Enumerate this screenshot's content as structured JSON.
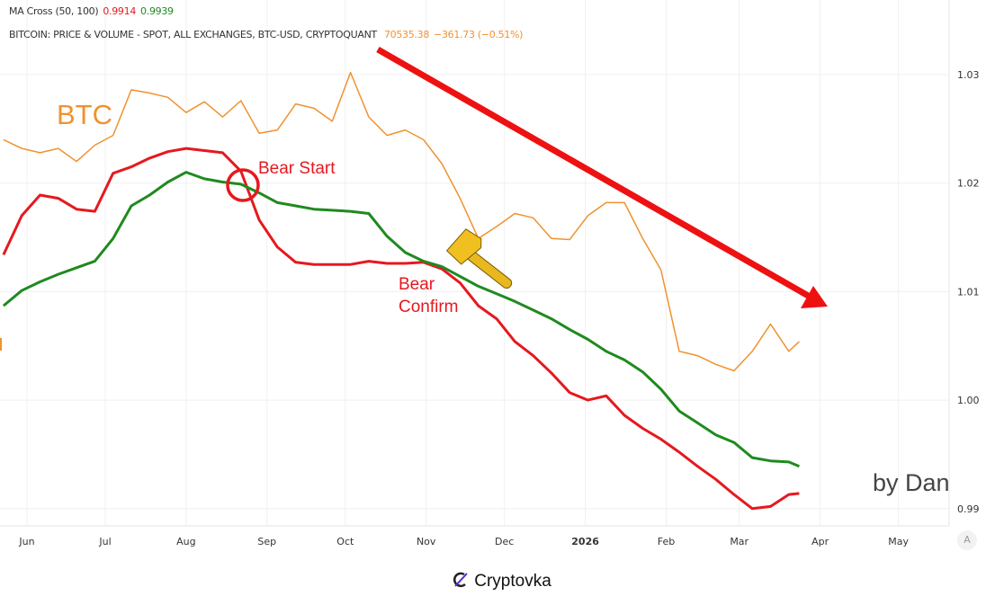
{
  "legend": {
    "indicator_label": "MA Cross (50, 100)",
    "ma_fast_value": "0.9914",
    "ma_slow_value": "0.9939",
    "symbol_label": "BITCOIN: PRICE & VOLUME - SPOT, ALL EXCHANGES, BTC-USD, CRYPTOQUANT",
    "price": "70535.38",
    "change": "−361.73 (−0.51%)"
  },
  "annotations": {
    "btc_label": "BTC",
    "bear_start": "Bear Start",
    "bear_confirm_line1": "Bear",
    "bear_confirm_line2": "Confirm",
    "author": "by Dan",
    "hammer_icon": "hammer-icon",
    "trend_arrow": "down-trend-arrow"
  },
  "auto_scale_button": "A",
  "footer": {
    "brand": "Cryptovka",
    "icon": "cryptovka-logo-icon"
  },
  "colors": {
    "btc": "#f0922e",
    "ma_fast": "#e5191f",
    "ma_slow": "#1f8a1f",
    "arrow": "#ee1111",
    "grid": "#f0f0f0"
  },
  "chart_data": {
    "type": "line",
    "title": "",
    "xlabel": "",
    "ylabel": "",
    "y_axis_position": "right",
    "ylim": [
      0.9885,
      1.0335
    ],
    "y_ticks": [
      "1.03",
      "1.02",
      "1.01",
      "1.00",
      "0.99"
    ],
    "x_range": [
      "2025-05-23",
      "2026-05-20"
    ],
    "x_ticks": [
      {
        "label": "Jun",
        "date": "2025-06-01"
      },
      {
        "label": "Jul",
        "date": "2025-07-01"
      },
      {
        "label": "Aug",
        "date": "2025-08-01"
      },
      {
        "label": "Sep",
        "date": "2025-09-01"
      },
      {
        "label": "Oct",
        "date": "2025-10-01"
      },
      {
        "label": "Nov",
        "date": "2025-11-01"
      },
      {
        "label": "Dec",
        "date": "2025-12-01"
      },
      {
        "label": "2026",
        "date": "2026-01-01",
        "bold": true
      },
      {
        "label": "Feb",
        "date": "2026-02-01"
      },
      {
        "label": "Mar",
        "date": "2026-03-01"
      },
      {
        "label": "Apr",
        "date": "2026-04-01"
      },
      {
        "label": "May",
        "date": "2026-05-01"
      }
    ],
    "grid": true,
    "x": [
      "2025-05-23",
      "2025-05-30",
      "2025-06-06",
      "2025-06-13",
      "2025-06-20",
      "2025-06-27",
      "2025-07-04",
      "2025-07-11",
      "2025-07-18",
      "2025-07-25",
      "2025-08-01",
      "2025-08-08",
      "2025-08-15",
      "2025-08-22",
      "2025-08-29",
      "2025-09-05",
      "2025-09-12",
      "2025-09-19",
      "2025-09-26",
      "2025-10-03",
      "2025-10-10",
      "2025-10-17",
      "2025-10-24",
      "2025-10-31",
      "2025-11-07",
      "2025-11-14",
      "2025-11-21",
      "2025-11-28",
      "2025-12-05",
      "2025-12-12",
      "2025-12-19",
      "2025-12-26",
      "2026-01-02",
      "2026-01-09",
      "2026-01-16",
      "2026-01-23",
      "2026-01-30",
      "2026-02-06",
      "2026-02-13",
      "2026-02-20",
      "2026-02-27",
      "2026-03-06",
      "2026-03-13",
      "2026-03-20",
      "2026-03-24"
    ],
    "series": [
      {
        "key": "btc",
        "color": "#f0922e",
        "width": 1.5,
        "values": [
          1.024,
          1.0232,
          1.0228,
          1.0232,
          1.022,
          1.0235,
          1.0244,
          1.0286,
          1.0283,
          1.0279,
          1.0265,
          1.0275,
          1.0261,
          1.0276,
          1.0246,
          1.0249,
          1.0273,
          1.0269,
          1.0257,
          1.0302,
          1.0261,
          1.0244,
          1.0249,
          1.024,
          1.0218,
          1.0186,
          1.0149,
          1.016,
          1.0172,
          1.0168,
          1.0149,
          1.0148,
          1.017,
          1.0182,
          1.0182,
          1.0149,
          1.012,
          1.0045,
          1.0041,
          1.0033,
          1.0027,
          1.0045,
          1.007,
          1.0045,
          1.0054
        ]
      },
      {
        "key": "ma_fast",
        "color": "#e5191f",
        "width": 3,
        "values": [
          1.0134,
          1.017,
          1.0189,
          1.0186,
          1.0176,
          1.0174,
          1.0209,
          1.0215,
          1.0223,
          1.0229,
          1.0232,
          1.023,
          1.0228,
          1.0211,
          1.0166,
          1.0141,
          1.0127,
          1.0125,
          1.0125,
          1.0125,
          1.0128,
          1.0126,
          1.0126,
          1.0127,
          1.0121,
          1.0108,
          1.0087,
          1.0075,
          1.0054,
          1.0041,
          1.0025,
          1.0007,
          1.0,
          1.0004,
          0.9986,
          0.9974,
          0.9964,
          0.9952,
          0.9939,
          0.9927,
          0.9913,
          0.99,
          0.9902,
          0.9913,
          0.9914
        ]
      },
      {
        "key": "ma_slow",
        "color": "#1f8a1f",
        "width": 3,
        "values": [
          1.0087,
          1.0101,
          1.0109,
          1.0116,
          1.0122,
          1.0128,
          1.0149,
          1.0179,
          1.0189,
          1.0201,
          1.021,
          1.0204,
          1.0201,
          1.0199,
          1.0191,
          1.0182,
          1.0179,
          1.0176,
          1.0175,
          1.0174,
          1.0172,
          1.0151,
          1.0136,
          1.0128,
          1.0123,
          1.0114,
          1.0105,
          1.0098,
          1.0091,
          1.0083,
          1.0075,
          1.0065,
          1.0056,
          1.0045,
          1.0037,
          1.0026,
          1.001,
          0.999,
          0.9979,
          0.9968,
          0.9961,
          0.9947,
          0.9944,
          0.9943,
          0.9939
        ]
      }
    ]
  }
}
